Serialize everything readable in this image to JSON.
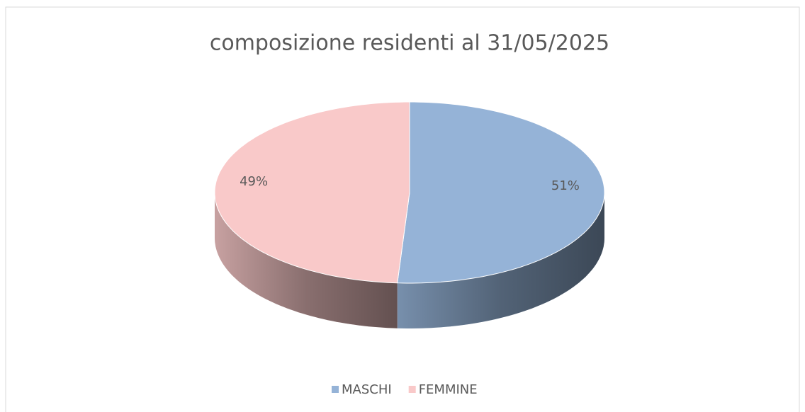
{
  "chart_data": {
    "type": "pie",
    "title": "composizione residenti al 31/05/2025",
    "categories": [
      "MASCHI",
      "FEMMINE"
    ],
    "values": [
      51,
      49
    ],
    "value_labels": [
      "51%",
      "49%"
    ],
    "colors": [
      "#95b3d7",
      "#f9c9c9"
    ],
    "legend": "bottom"
  }
}
